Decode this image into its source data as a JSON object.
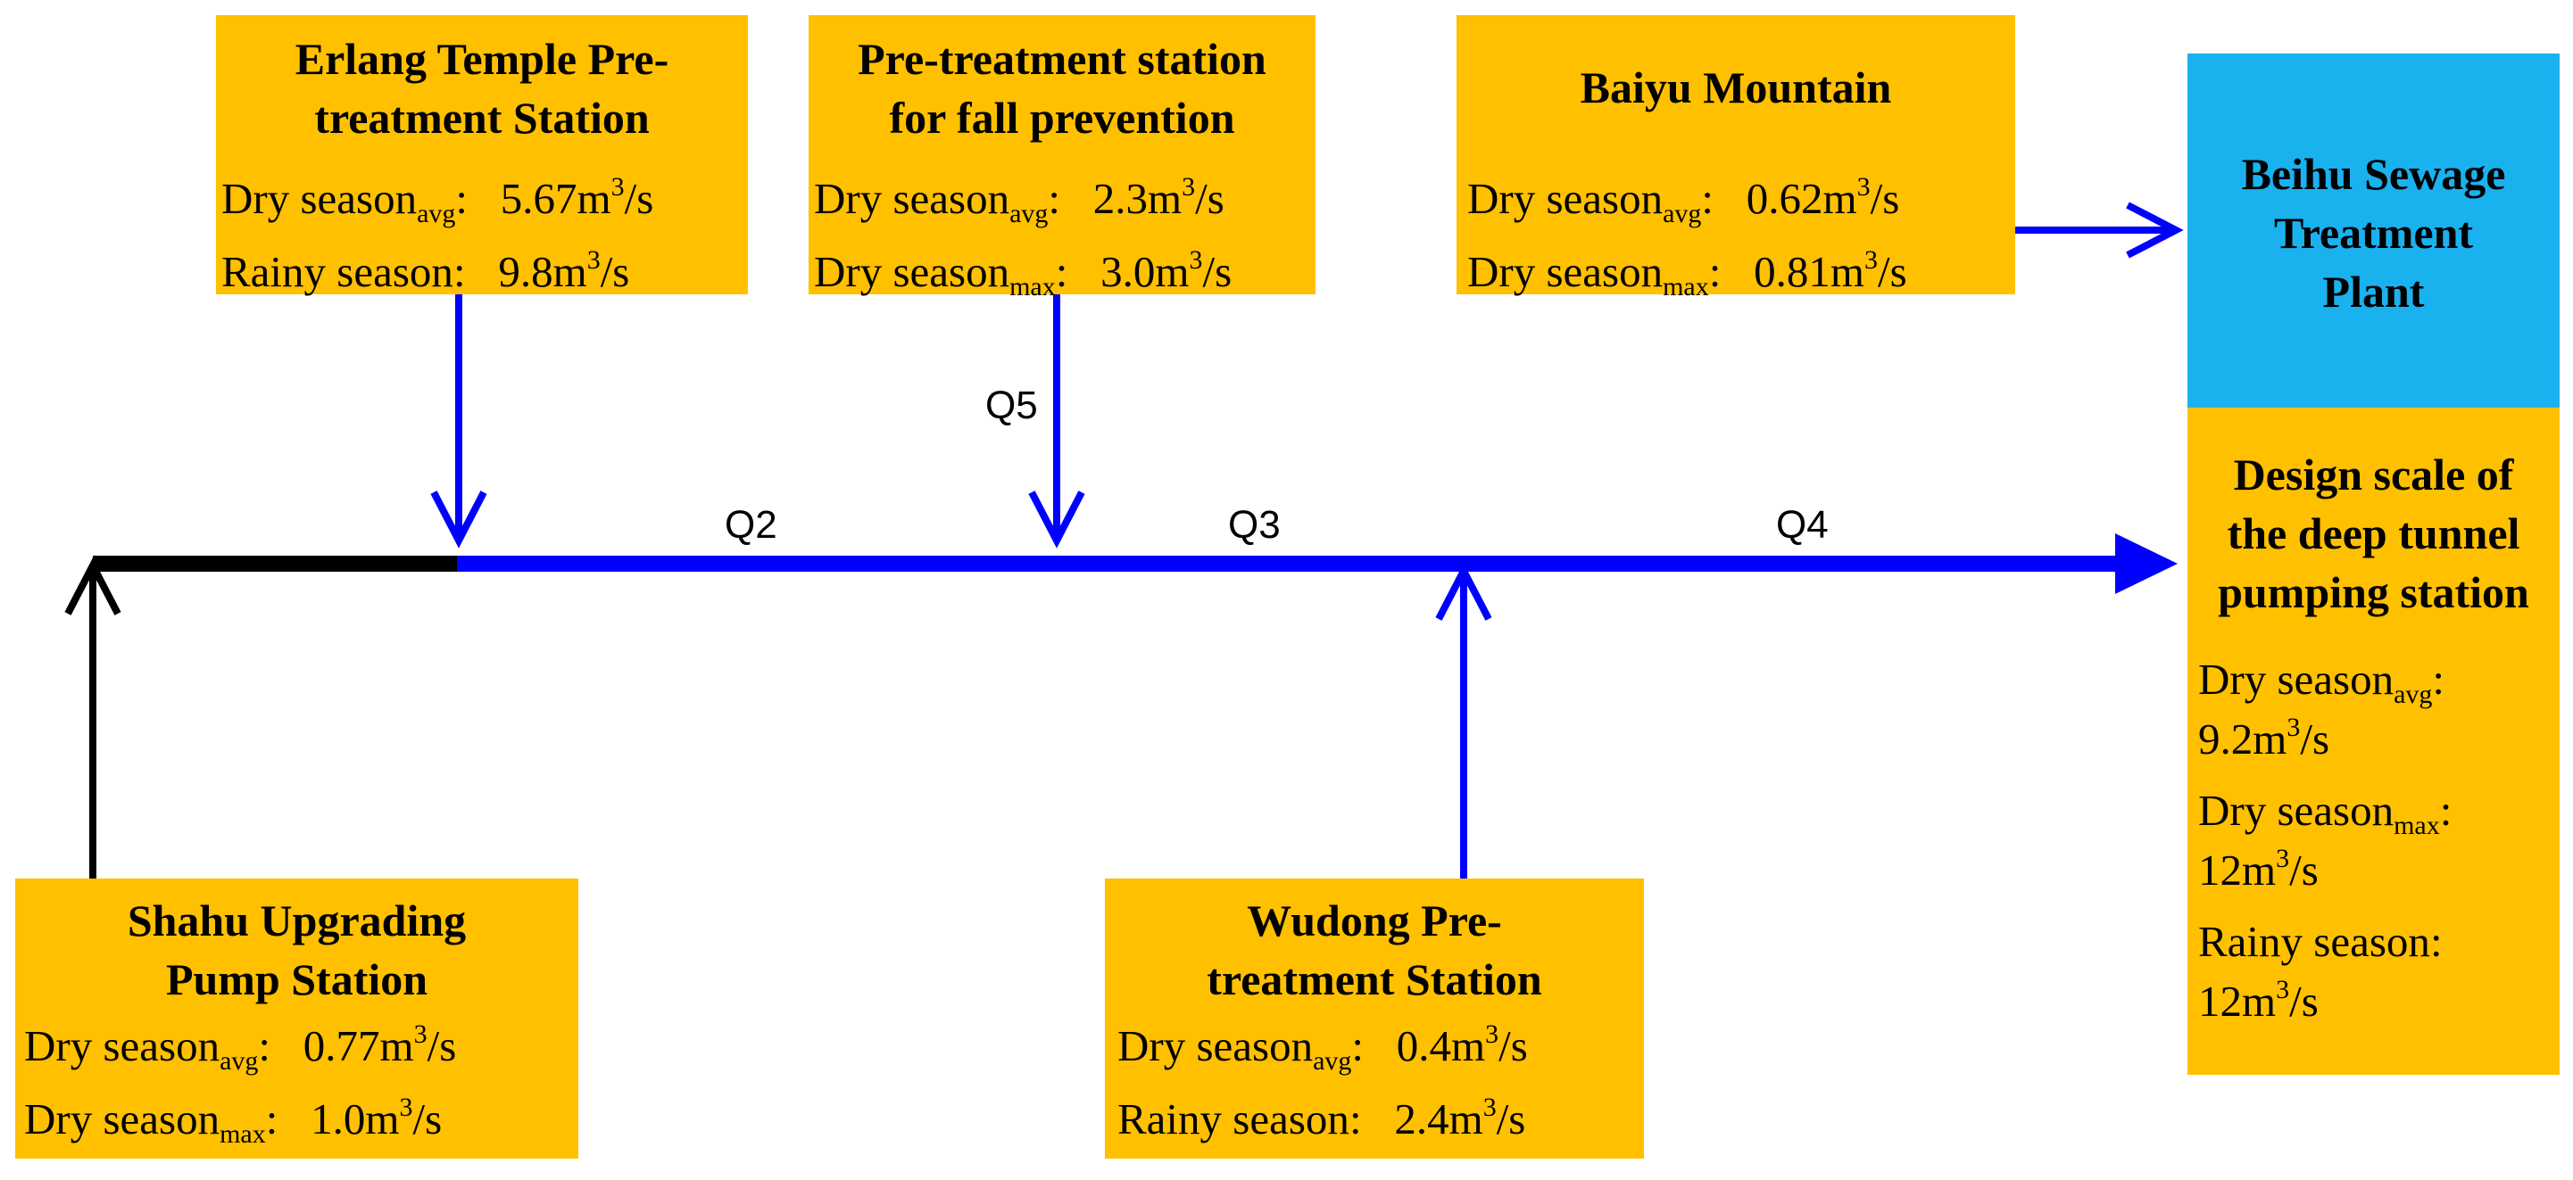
{
  "labels": {
    "sub_avg": "avg",
    "sub_max": "max",
    "unit_tail": "/s",
    "sup3": "3"
  },
  "stations": {
    "erlang": {
      "title_l1": "Erlang Temple Pre-",
      "title_l2": "treatment Station",
      "row1": {
        "label": "Dry season",
        "sub": "avg",
        "sep": ": ",
        "value": "5.67m"
      },
      "row2": {
        "label": "Rainy season",
        "sep": ": ",
        "value": "9.8m"
      }
    },
    "fall": {
      "title_l1": "Pre-treatment station",
      "title_l2": "for fall prevention",
      "row1": {
        "label": "Dry season",
        "sub": "avg",
        "sep": ": ",
        "value": "2.3m"
      },
      "row2": {
        "label": "Dry season",
        "sub": "max",
        "sep": ": ",
        "value": "3.0m"
      }
    },
    "baiyu": {
      "title": "Baiyu Mountain",
      "row1": {
        "label": "Dry season",
        "sub": "avg",
        "sep": ": ",
        "value": "0.62m"
      },
      "row2": {
        "label": "Dry season",
        "sub": "max",
        "sep": ": ",
        "value": "0.81m"
      }
    },
    "shahu": {
      "title_l1": "Shahu Upgrading",
      "title_l2": "Pump Station",
      "row1": {
        "label": "Dry season",
        "sub": "avg",
        "sep": ": ",
        "value": "0.77m"
      },
      "row2": {
        "label": "Dry season",
        "sub": "max",
        "sep": ": ",
        "value": "1.0m"
      }
    },
    "wudong": {
      "title_l1": "Wudong Pre-",
      "title_l2": "treatment Station",
      "row1": {
        "label": "Dry season",
        "sub": "avg",
        "sep": ": ",
        "value": "0.4m"
      },
      "row2": {
        "label": "Rainy season",
        "sep": ": ",
        "value": "2.4m"
      }
    }
  },
  "beihu": {
    "line1": "Beihu Sewage",
    "line2": "Treatment",
    "line3": "Plant"
  },
  "design": {
    "title_l1": "Design scale of",
    "title_l2": "the deep tunnel",
    "title_l3": "pumping station",
    "row1_label": "Dry season",
    "row1_sub": "avg",
    "row1_sep": ":",
    "row1_value": "9.2m",
    "row2_label": "Dry season",
    "row2_sub": "max",
    "row2_sep": ":",
    "row2_value": "12m",
    "row3_label": "Rainy season",
    "row3_sep": ":",
    "row3_value": "12m"
  },
  "flows": {
    "q2": "Q2",
    "q3": "Q3",
    "q4": "Q4",
    "q5": "Q5"
  },
  "colors": {
    "box": "#ffc000",
    "plant": "#1ab1ef",
    "main_line": "#0000ff",
    "feeder_black": "#000000"
  }
}
